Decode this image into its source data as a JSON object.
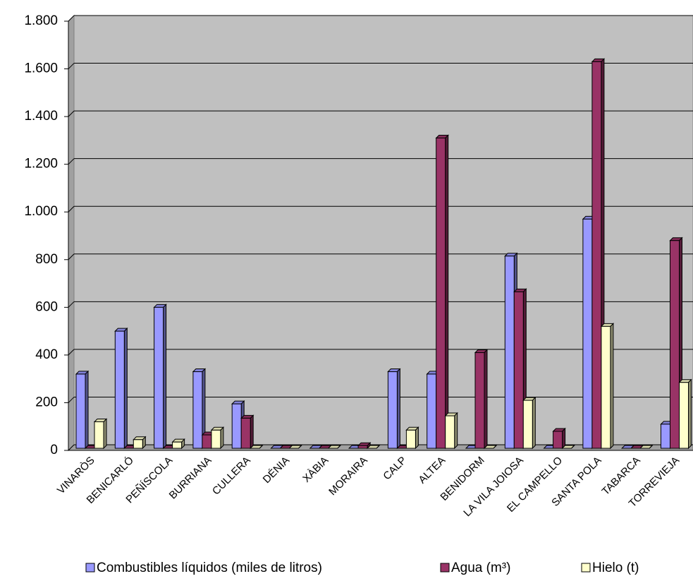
{
  "chart_data": {
    "type": "bar",
    "categories": [
      "VINARÒS",
      "BENICARLÓ",
      "PEÑÍSCOLA",
      "BURRIANA",
      "CULLERA",
      "DÉNIA",
      "XÀBIA",
      "MORAIRA",
      "CALP",
      "ALTEA",
      "BENIDORM",
      "LA VILA JOIOSA",
      "EL CAMPELLO",
      "SANTA POLA",
      "TABARCA",
      "TORREVIEJA"
    ],
    "series": [
      {
        "name": "Combustibles líquidos (miles de litros)",
        "color": "#9999ff",
        "values": [
          320,
          500,
          600,
          330,
          195,
          0,
          0,
          0,
          330,
          320,
          0,
          815,
          0,
          970,
          0,
          110
        ]
      },
      {
        "name": "Agua (m³)",
        "color": "#993366",
        "values": [
          0,
          0,
          0,
          65,
          135,
          0,
          0,
          20,
          0,
          1310,
          410,
          665,
          80,
          1630,
          0,
          880
        ]
      },
      {
        "name": "Hielo (t)",
        "color": "#ffffcc",
        "values": [
          120,
          45,
          35,
          85,
          3,
          0,
          0,
          3,
          85,
          145,
          0,
          210,
          3,
          520,
          0,
          285
        ]
      }
    ],
    "ylim": [
      0,
      1800
    ],
    "yticks": [
      0,
      200,
      400,
      600,
      800,
      {
        "value": 1000,
        "label": "1.000"
      },
      {
        "value": 1200,
        "label": "1.200"
      },
      {
        "value": 1400,
        "label": "1.400"
      },
      {
        "value": 1600,
        "label": "1.600"
      },
      {
        "value": 1800,
        "label": "1.800"
      }
    ],
    "grid": true,
    "legend": "bottom",
    "plot_background": "#c0c0c0"
  }
}
